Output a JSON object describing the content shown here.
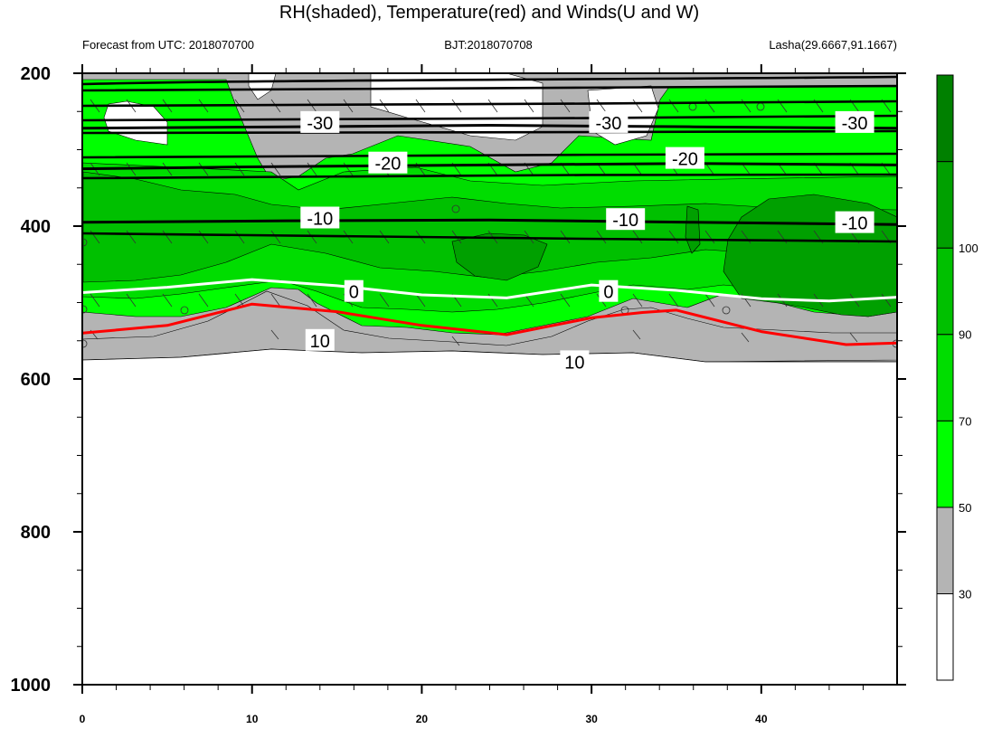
{
  "chart_data": {
    "type": "heatmap",
    "title": "RH(shaded), Temperature(red) and Winds(U and W)",
    "left_string": "Forecast from UTC: 2018070700",
    "center_string": "BJT:2018070708",
    "right_string": "Lasha(29.6667,91.1667)",
    "xlabel": "",
    "ylabel": "",
    "xlim": [
      0,
      48
    ],
    "ylim": [
      1000,
      200
    ],
    "x_ticks": [
      0,
      10,
      20,
      30,
      40
    ],
    "y_ticks": [
      200,
      400,
      600,
      800,
      1000
    ],
    "grid": false,
    "colorbar": {
      "placement": "right",
      "levels": [
        30,
        50,
        70,
        90,
        100
      ],
      "colors": [
        "#ffffff",
        "#b4b4b4",
        "#00ff00",
        "#00dd00",
        "#00c000",
        "#00a000",
        "#008000"
      ]
    },
    "temperature_contours": [
      {
        "level": -30,
        "color": "#000000",
        "label": "-30",
        "x": [
          0,
          12,
          24,
          36,
          48
        ],
        "y": [
          272,
          270,
          268,
          270,
          272
        ]
      },
      {
        "level": -20,
        "color": "#000000",
        "label": "-20",
        "x": [
          0,
          12,
          24,
          36,
          48
        ],
        "y": [
          325,
          322,
          320,
          318,
          320
        ]
      },
      {
        "level": -10,
        "color": "#000000",
        "label": "-10",
        "x": [
          0,
          12,
          24,
          36,
          48
        ],
        "y": [
          395,
          393,
          392,
          395,
          398
        ]
      },
      {
        "level": 0,
        "color": "#ffffff",
        "label": "0",
        "x": [
          0,
          5,
          10,
          15,
          20,
          25,
          30,
          35,
          40,
          44,
          48
        ],
        "y": [
          487,
          480,
          470,
          478,
          490,
          494,
          477,
          484,
          495,
          498,
          493
        ]
      },
      {
        "level": 10,
        "color": "#ff0000",
        "label": "10",
        "x": [
          0,
          5,
          10,
          15,
          20,
          25,
          30,
          33,
          35,
          40,
          45,
          48
        ],
        "y": [
          540,
          530,
          502,
          512,
          530,
          542,
          520,
          513,
          510,
          538,
          555,
          553
        ]
      }
    ],
    "contour_labels": [
      {
        "text": "-30",
        "x": 14,
        "y": 265
      },
      {
        "text": "-30",
        "x": 31,
        "y": 265
      },
      {
        "text": "-30",
        "x": 45.5,
        "y": 265
      },
      {
        "text": "-20",
        "x": 18,
        "y": 318
      },
      {
        "text": "-20",
        "x": 35.5,
        "y": 312
      },
      {
        "text": "-10",
        "x": 14,
        "y": 390
      },
      {
        "text": "-10",
        "x": 32,
        "y": 392
      },
      {
        "text": "-10",
        "x": 45.5,
        "y": 396
      },
      {
        "text": "0",
        "x": 16,
        "y": 486
      },
      {
        "text": "0",
        "x": 31,
        "y": 486
      },
      {
        "text": "10",
        "x": 14,
        "y": 550
      },
      {
        "text": "10",
        "x": 29,
        "y": 578
      }
    ]
  }
}
